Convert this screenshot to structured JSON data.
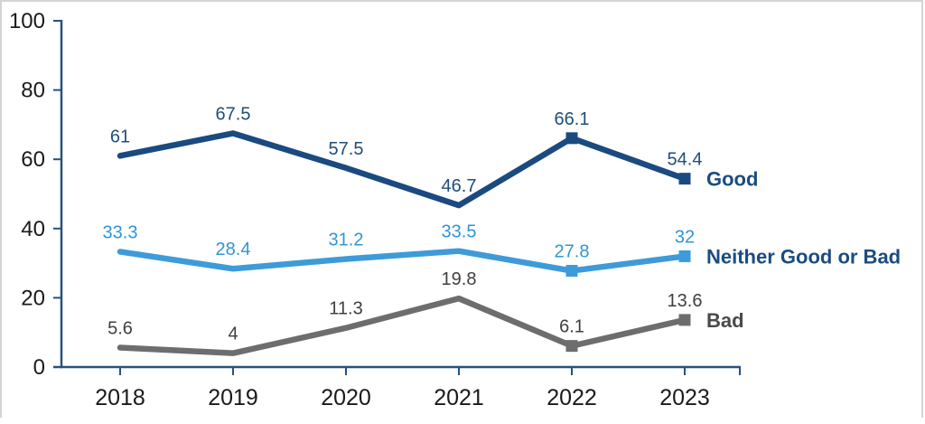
{
  "frame": {
    "border_color": "#d4d4d4",
    "background": "#ffffff"
  },
  "chart_data": {
    "type": "line",
    "title": "",
    "xlabel": "",
    "ylabel": "",
    "categories": [
      "2018",
      "2019",
      "2020",
      "2021",
      "2022",
      "2023"
    ],
    "series": [
      {
        "name": "Good",
        "values": [
          61,
          67.5,
          57.5,
          46.7,
          66.1,
          54.4
        ],
        "labels": [
          "61",
          "67.5",
          "57.5",
          "46.7",
          "66.1",
          "54.4"
        ],
        "color": "#1a4a80",
        "label_color": "#1f4e79",
        "legend_color": "#1b4c80",
        "marker_indices": [
          4,
          5
        ]
      },
      {
        "name": "Neither Good or Bad",
        "values": [
          33.3,
          28.4,
          31.2,
          33.5,
          27.8,
          32
        ],
        "labels": [
          "33.3",
          "28.4",
          "31.2",
          "33.5",
          "27.8",
          "32"
        ],
        "color": "#3d9bd9",
        "label_color": "#2f96d4",
        "legend_color": "#1b4c80",
        "marker_indices": [
          4,
          5
        ]
      },
      {
        "name": "Bad",
        "values": [
          5.6,
          4,
          11.3,
          19.8,
          6.1,
          13.6
        ],
        "labels": [
          "5.6",
          "4",
          "11.3",
          "19.8",
          "6.1",
          "13.6"
        ],
        "color": "#6d6d6d",
        "label_color": "#3f3f3f",
        "legend_color": "#4a4a4a",
        "marker_indices": [
          4,
          5
        ]
      }
    ],
    "ylim": [
      0,
      100
    ],
    "yticks": [
      "0",
      "20",
      "40",
      "60",
      "80",
      "100"
    ],
    "ytick_values": [
      0,
      20,
      40,
      60,
      80,
      100
    ],
    "axis_color": "#24527e",
    "tick_label_color": "#1a1a1a",
    "grid": false,
    "legend_position": "right-of-last-point"
  }
}
